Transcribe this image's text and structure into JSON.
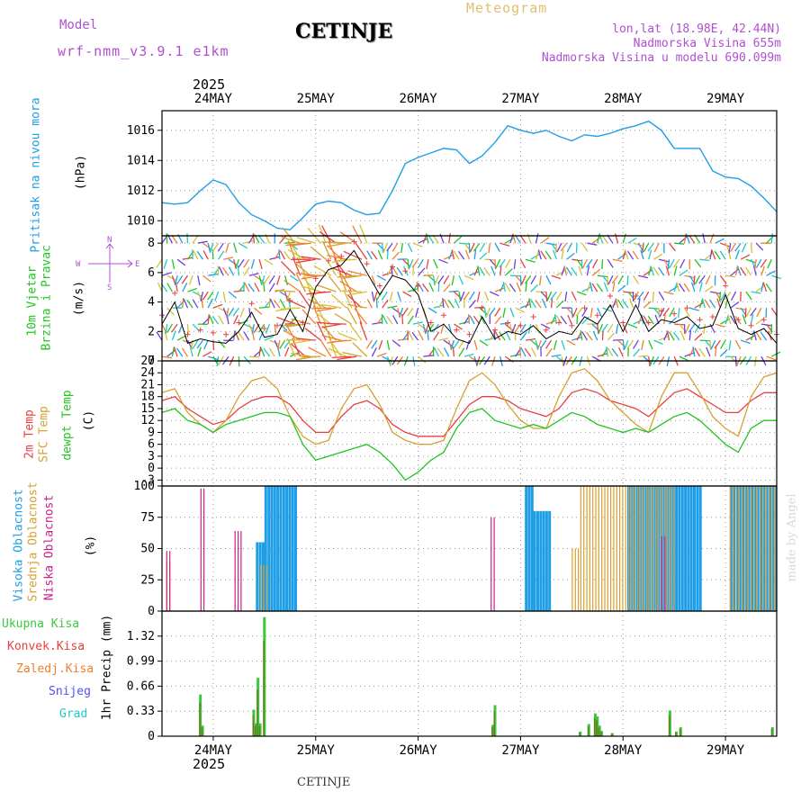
{
  "header": {
    "model_label": "Model",
    "model_name": "wrf-nmm_v3.9.1 e1km",
    "station": "CETINJE",
    "product": "Meteogram",
    "lonlat": "lon,lat (18.98E, 42.44N)",
    "elevation": "Nadmorska Visina 655m",
    "model_elevation": "Nadmorska Visina u modelu 690.099m",
    "year": "2025",
    "footer_station": "CETINJE",
    "credit": "made by Angel"
  },
  "colors": {
    "pressure": "#1e9ee6",
    "wind_label": "#22c422",
    "temp2m": "#e84040",
    "sfc": "#d8a030",
    "dewpt": "#22c422",
    "high_cloud": "#1e9ee6",
    "mid_cloud": "#d8a030",
    "low_cloud": "#c8208c",
    "precip_total": "#3cc83c",
    "precip_conv": "#e84040",
    "precip_strat": "#f08030",
    "snow": "#5050f0",
    "graupel": "#20c8c8",
    "compass": "#b050d0"
  },
  "x_axis": {
    "days": [
      "24MAY",
      "25MAY",
      "26MAY",
      "27MAY",
      "28MAY",
      "29MAY"
    ],
    "year": "2025"
  },
  "panels": {
    "pressure": {
      "label_lines": [
        "Pritisak na nivou mora"
      ],
      "unit": "(hPa)"
    },
    "wind": {
      "label_lines": [
        "10m Vjetar",
        "Brzina i Pravac"
      ],
      "unit": "(m/s)",
      "compass": {
        "north": "N",
        "south": "S",
        "west": "W",
        "east": "E"
      }
    },
    "temp": {
      "label_lines": [
        "2m Temp",
        "SFC Temp",
        "dewpt Temp"
      ],
      "unit": "(C)"
    },
    "cloud": {
      "label_lines": [
        "Visoka Oblacnost",
        "Srednja Oblacnost",
        "Niska Oblacnost"
      ],
      "unit": "(%)"
    },
    "precip": {
      "unit": "1hr Precip (mm)",
      "legend": [
        "Ukupna Kisa",
        "Konvek.Kisa",
        "Zaledj.Kisa",
        "Snijeg",
        "Grad"
      ]
    }
  },
  "chart_data": [
    {
      "type": "line",
      "name": "pressure",
      "x_unit": "hours since 24MAY 00Z",
      "x_range": [
        -12,
        132
      ],
      "ylim": [
        1009,
        1017.3
      ],
      "yticks": [
        1010,
        1012,
        1014,
        1016
      ],
      "series": [
        {
          "name": "Pritisak na nivou mora",
          "x": [
            -12,
            -9,
            -6,
            -3,
            0,
            3,
            6,
            9,
            12,
            15,
            18,
            21,
            24,
            27,
            30,
            33,
            36,
            39,
            42,
            45,
            48,
            51,
            54,
            57,
            60,
            63,
            66,
            69,
            72,
            75,
            78,
            81,
            84,
            87,
            90,
            93,
            96,
            99,
            102,
            105,
            108,
            111,
            114,
            117,
            120,
            123,
            126,
            129,
            132
          ],
          "values": [
            1011.2,
            1011.1,
            1011.2,
            1012.0,
            1012.7,
            1012.4,
            1011.2,
            1010.4,
            1010.0,
            1009.5,
            1009.4,
            1010.2,
            1011.1,
            1011.3,
            1011.2,
            1010.7,
            1010.4,
            1010.5,
            1012.0,
            1013.8,
            1014.2,
            1014.5,
            1014.8,
            1014.7,
            1013.8,
            1014.3,
            1015.2,
            1016.3,
            1016.0,
            1015.8,
            1016.0,
            1015.6,
            1015.3,
            1015.7,
            1015.6,
            1015.8,
            1016.1,
            1016.3,
            1016.6,
            1016.0,
            1014.8,
            1014.8,
            1014.8,
            1013.3,
            1012.9,
            1012.8,
            1012.3,
            1011.5,
            1010.6
          ]
        }
      ]
    },
    {
      "type": "line",
      "name": "wind",
      "x_range": [
        -12,
        132
      ],
      "ylim": [
        0,
        8.5
      ],
      "yticks": [
        0,
        2,
        4,
        6,
        8
      ],
      "series": [
        {
          "name": "10m wind speed",
          "x": [
            -12,
            -9,
            -6,
            -3,
            0,
            3,
            6,
            9,
            12,
            15,
            18,
            21,
            24,
            27,
            30,
            33,
            36,
            39,
            42,
            45,
            48,
            51,
            54,
            57,
            60,
            63,
            66,
            69,
            72,
            75,
            78,
            81,
            84,
            87,
            90,
            93,
            96,
            99,
            102,
            105,
            108,
            111,
            114,
            117,
            120,
            123,
            126,
            129,
            132
          ],
          "values": [
            2.5,
            4.0,
            1.2,
            1.5,
            1.3,
            1.2,
            2.0,
            3.3,
            1.6,
            1.8,
            3.5,
            2.0,
            5.0,
            6.2,
            6.5,
            7.5,
            6.0,
            4.5,
            5.8,
            5.5,
            4.5,
            2.0,
            2.5,
            1.5,
            1.2,
            3.0,
            1.5,
            2.0,
            1.8,
            2.4,
            1.5,
            2.0,
            1.8,
            3.0,
            2.5,
            3.8,
            2.0,
            3.8,
            2.0,
            2.8,
            2.6,
            3.0,
            2.2,
            2.4,
            4.5,
            2.2,
            1.8,
            2.2,
            1.2
          ]
        }
      ]
    },
    {
      "type": "line",
      "name": "temperature",
      "x_range": [
        -12,
        132
      ],
      "ylim": [
        -4.5,
        27
      ],
      "yticks": [
        -3,
        0,
        3,
        6,
        9,
        12,
        15,
        18,
        21,
        24,
        27
      ],
      "series": [
        {
          "name": "2m Temp",
          "x": [
            -12,
            -9,
            -6,
            -3,
            0,
            3,
            6,
            9,
            12,
            15,
            18,
            21,
            24,
            27,
            30,
            33,
            36,
            39,
            42,
            45,
            48,
            51,
            54,
            57,
            60,
            63,
            66,
            69,
            72,
            75,
            78,
            81,
            84,
            87,
            90,
            93,
            96,
            99,
            102,
            105,
            108,
            111,
            114,
            117,
            120,
            123,
            126,
            129,
            132
          ],
          "values": [
            17,
            18,
            15,
            13,
            11,
            12,
            15,
            17,
            18,
            18,
            16,
            12,
            9,
            9,
            13,
            16,
            17,
            15,
            11,
            9,
            8,
            8,
            8,
            12,
            16,
            18,
            18,
            17,
            15,
            14,
            13,
            15,
            19,
            20,
            19,
            17,
            16,
            15,
            13,
            16,
            19,
            20,
            18,
            16,
            14,
            14,
            17,
            19,
            19
          ]
        },
        {
          "name": "SFC Temp",
          "x": [
            -12,
            -9,
            -6,
            -3,
            0,
            3,
            6,
            9,
            12,
            15,
            18,
            21,
            24,
            27,
            30,
            33,
            36,
            39,
            42,
            45,
            48,
            51,
            54,
            57,
            60,
            63,
            66,
            69,
            72,
            75,
            78,
            81,
            84,
            87,
            90,
            93,
            96,
            99,
            102,
            105,
            108,
            111,
            114,
            117,
            120,
            123,
            126,
            129,
            132
          ],
          "values": [
            19,
            20,
            14,
            11,
            9,
            12,
            18,
            22,
            23,
            20,
            13,
            8,
            6,
            7,
            15,
            20,
            21,
            16,
            9,
            7,
            6,
            6,
            7,
            15,
            22,
            24,
            21,
            16,
            12,
            10,
            10,
            18,
            24,
            25,
            22,
            17,
            14,
            11,
            9,
            18,
            24,
            24,
            19,
            13,
            10,
            8,
            18,
            23,
            24
          ]
        },
        {
          "name": "dewpt Temp",
          "x": [
            -12,
            -9,
            -6,
            -3,
            0,
            3,
            6,
            9,
            12,
            15,
            18,
            21,
            24,
            27,
            30,
            33,
            36,
            39,
            42,
            45,
            48,
            51,
            54,
            57,
            60,
            63,
            66,
            69,
            72,
            75,
            78,
            81,
            84,
            87,
            90,
            93,
            96,
            99,
            102,
            105,
            108,
            111,
            114,
            117,
            120,
            123,
            126,
            129,
            132
          ],
          "values": [
            14,
            15,
            12,
            11,
            9,
            11,
            12,
            13,
            14,
            14,
            13,
            6,
            2,
            3,
            4,
            5,
            6,
            4,
            1,
            -3,
            -1,
            2,
            4,
            10,
            14,
            15,
            12,
            11,
            10,
            11,
            10,
            12,
            14,
            13,
            11,
            10,
            9,
            10,
            9,
            11,
            13,
            14,
            12,
            9,
            6,
            4,
            10,
            12,
            12
          ]
        }
      ]
    },
    {
      "type": "bar",
      "name": "cloud_cover",
      "x_range": [
        -12,
        132
      ],
      "ylim": [
        0,
        100
      ],
      "yticks": [
        0,
        25,
        50,
        75,
        100
      ],
      "series": [
        {
          "name": "Visoka Oblacnost",
          "blocks": [
            [
              10,
              12,
              55
            ],
            [
              12,
              19,
              100
            ],
            [
              73,
              75,
              100
            ],
            [
              75,
              79,
              80
            ],
            [
              97,
              114,
              100
            ],
            [
              121,
              132,
              100
            ]
          ]
        },
        {
          "name": "Srednja Oblacnost",
          "blocks": [
            [
              -11,
              -10,
              40
            ],
            [
              11,
              13,
              37
            ],
            [
              84,
              86,
              50
            ],
            [
              86,
              108,
              100
            ],
            [
              121,
              132,
              100
            ]
          ]
        },
        {
          "name": "Niska Oblacnost",
          "blocks": [
            [
              -11,
              -10,
              48
            ],
            [
              -3,
              -2,
              98
            ],
            [
              5,
              7,
              64
            ],
            [
              65,
              66,
              75
            ],
            [
              105,
              106,
              60
            ]
          ]
        }
      ]
    },
    {
      "type": "bar",
      "name": "precipitation",
      "x_range": [
        -12,
        132
      ],
      "ylim": [
        0,
        1.65
      ],
      "yticks": [
        0,
        0.33,
        0.66,
        0.99,
        1.32
      ],
      "series": [
        {
          "name": "Ukupna Kisa",
          "x": [
            -3,
            -2.5,
            9.5,
            10,
            10.5,
            11,
            12,
            65.5,
            66,
            86,
            88,
            89.5,
            90,
            90.5,
            91,
            93.5,
            107,
            108.5,
            108.5,
            109.5,
            131
          ],
          "values": [
            0.55,
            0.14,
            0.35,
            0.17,
            0.77,
            0.17,
            1.57,
            0.15,
            0.41,
            0.06,
            0.16,
            0.3,
            0.26,
            0.14,
            0.07,
            0.04,
            0.34,
            0.06,
            0.06,
            0.12,
            0.12
          ]
        }
      ]
    }
  ]
}
